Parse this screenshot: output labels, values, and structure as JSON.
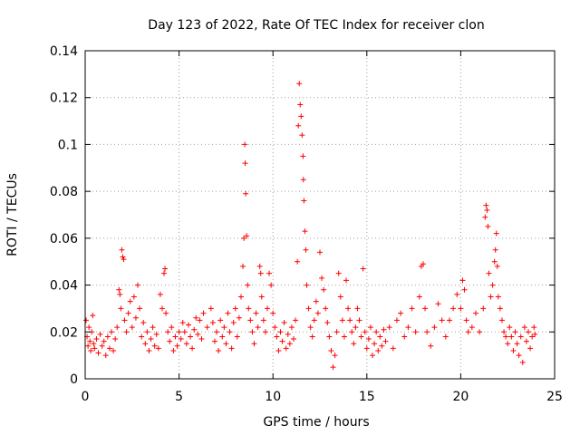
{
  "chart_data": {
    "type": "scatter",
    "title": "Day 123 of 2022, Rate Of TEC Index for receiver clon",
    "xlabel": "GPS time / hours",
    "ylabel": "ROTI / TECUs",
    "xlim": [
      0,
      25
    ],
    "ylim": [
      0,
      0.14
    ],
    "x_ticks": [
      "0",
      "5",
      "10",
      "15",
      "20",
      "25"
    ],
    "y_ticks": [
      "0",
      "0.02",
      "0.04",
      "0.06",
      "0.08",
      "0.1",
      "0.12",
      "0.14"
    ],
    "grid": true,
    "marker": "plus",
    "color": "#ff0000",
    "series": [
      {
        "points": [
          [
            0.05,
            0.025
          ],
          [
            0.1,
            0.018
          ],
          [
            0.15,
            0.014
          ],
          [
            0.2,
            0.022
          ],
          [
            0.25,
            0.016
          ],
          [
            0.3,
            0.012
          ],
          [
            0.35,
            0.02
          ],
          [
            0.4,
            0.027
          ],
          [
            0.45,
            0.015
          ],
          [
            0.5,
            0.013
          ],
          [
            0.6,
            0.017
          ],
          [
            0.7,
            0.011
          ],
          [
            0.8,
            0.019
          ],
          [
            0.9,
            0.014
          ],
          [
            1.0,
            0.016
          ],
          [
            1.1,
            0.01
          ],
          [
            1.2,
            0.018
          ],
          [
            1.3,
            0.013
          ],
          [
            1.4,
            0.02
          ],
          [
            1.5,
            0.012
          ],
          [
            1.6,
            0.017
          ],
          [
            1.7,
            0.022
          ],
          [
            1.8,
            0.038
          ],
          [
            1.85,
            0.036
          ],
          [
            1.9,
            0.03
          ],
          [
            1.95,
            0.055
          ],
          [
            2.0,
            0.052
          ],
          [
            2.05,
            0.051
          ],
          [
            2.1,
            0.025
          ],
          [
            2.2,
            0.02
          ],
          [
            2.3,
            0.028
          ],
          [
            2.4,
            0.033
          ],
          [
            2.5,
            0.022
          ],
          [
            2.6,
            0.035
          ],
          [
            2.7,
            0.026
          ],
          [
            2.8,
            0.04
          ],
          [
            2.9,
            0.03
          ],
          [
            3.0,
            0.018
          ],
          [
            3.1,
            0.024
          ],
          [
            3.2,
            0.015
          ],
          [
            3.3,
            0.02
          ],
          [
            3.4,
            0.012
          ],
          [
            3.5,
            0.017
          ],
          [
            3.6,
            0.022
          ],
          [
            3.7,
            0.014
          ],
          [
            3.8,
            0.019
          ],
          [
            3.9,
            0.013
          ],
          [
            4.0,
            0.036
          ],
          [
            4.1,
            0.03
          ],
          [
            4.2,
            0.045
          ],
          [
            4.25,
            0.047
          ],
          [
            4.3,
            0.028
          ],
          [
            4.4,
            0.02
          ],
          [
            4.5,
            0.016
          ],
          [
            4.6,
            0.022
          ],
          [
            4.7,
            0.012
          ],
          [
            4.8,
            0.018
          ],
          [
            4.9,
            0.014
          ],
          [
            5.0,
            0.02
          ],
          [
            5.1,
            0.017
          ],
          [
            5.2,
            0.024
          ],
          [
            5.3,
            0.02
          ],
          [
            5.4,
            0.015
          ],
          [
            5.5,
            0.023
          ],
          [
            5.6,
            0.018
          ],
          [
            5.7,
            0.013
          ],
          [
            5.8,
            0.021
          ],
          [
            5.9,
            0.026
          ],
          [
            6.0,
            0.019
          ],
          [
            6.1,
            0.025
          ],
          [
            6.2,
            0.017
          ],
          [
            6.3,
            0.028
          ],
          [
            6.5,
            0.022
          ],
          [
            6.7,
            0.03
          ],
          [
            6.8,
            0.024
          ],
          [
            6.9,
            0.016
          ],
          [
            7.0,
            0.02
          ],
          [
            7.1,
            0.012
          ],
          [
            7.2,
            0.025
          ],
          [
            7.3,
            0.018
          ],
          [
            7.4,
            0.022
          ],
          [
            7.5,
            0.015
          ],
          [
            7.6,
            0.028
          ],
          [
            7.7,
            0.02
          ],
          [
            7.8,
            0.013
          ],
          [
            7.9,
            0.024
          ],
          [
            8.0,
            0.03
          ],
          [
            8.1,
            0.018
          ],
          [
            8.2,
            0.026
          ],
          [
            8.3,
            0.035
          ],
          [
            8.4,
            0.048
          ],
          [
            8.45,
            0.06
          ],
          [
            8.5,
            0.1
          ],
          [
            8.52,
            0.092
          ],
          [
            8.55,
            0.079
          ],
          [
            8.6,
            0.061
          ],
          [
            8.65,
            0.04
          ],
          [
            8.7,
            0.03
          ],
          [
            8.8,
            0.025
          ],
          [
            8.9,
            0.02
          ],
          [
            9.0,
            0.015
          ],
          [
            9.1,
            0.028
          ],
          [
            9.2,
            0.022
          ],
          [
            9.3,
            0.048
          ],
          [
            9.35,
            0.045
          ],
          [
            9.4,
            0.035
          ],
          [
            9.5,
            0.025
          ],
          [
            9.6,
            0.02
          ],
          [
            9.7,
            0.03
          ],
          [
            9.8,
            0.045
          ],
          [
            9.9,
            0.04
          ],
          [
            10.0,
            0.028
          ],
          [
            10.1,
            0.022
          ],
          [
            10.2,
            0.018
          ],
          [
            10.3,
            0.012
          ],
          [
            10.4,
            0.02
          ],
          [
            10.5,
            0.016
          ],
          [
            10.6,
            0.024
          ],
          [
            10.7,
            0.013
          ],
          [
            10.8,
            0.019
          ],
          [
            10.9,
            0.015
          ],
          [
            11.0,
            0.022
          ],
          [
            11.1,
            0.017
          ],
          [
            11.2,
            0.025
          ],
          [
            11.3,
            0.05
          ],
          [
            11.35,
            0.108
          ],
          [
            11.4,
            0.126
          ],
          [
            11.45,
            0.117
          ],
          [
            11.5,
            0.112
          ],
          [
            11.55,
            0.104
          ],
          [
            11.6,
            0.095
          ],
          [
            11.62,
            0.085
          ],
          [
            11.65,
            0.076
          ],
          [
            11.7,
            0.063
          ],
          [
            11.75,
            0.055
          ],
          [
            11.8,
            0.04
          ],
          [
            11.9,
            0.03
          ],
          [
            12.0,
            0.022
          ],
          [
            12.1,
            0.018
          ],
          [
            12.2,
            0.025
          ],
          [
            12.3,
            0.033
          ],
          [
            12.4,
            0.028
          ],
          [
            12.5,
            0.054
          ],
          [
            12.6,
            0.043
          ],
          [
            12.7,
            0.038
          ],
          [
            12.8,
            0.03
          ],
          [
            12.9,
            0.024
          ],
          [
            13.0,
            0.018
          ],
          [
            13.1,
            0.012
          ],
          [
            13.2,
            0.005
          ],
          [
            13.3,
            0.01
          ],
          [
            13.4,
            0.02
          ],
          [
            13.5,
            0.045
          ],
          [
            13.6,
            0.035
          ],
          [
            13.7,
            0.025
          ],
          [
            13.8,
            0.018
          ],
          [
            13.9,
            0.042
          ],
          [
            14.0,
            0.03
          ],
          [
            14.1,
            0.025
          ],
          [
            14.2,
            0.02
          ],
          [
            14.3,
            0.015
          ],
          [
            14.4,
            0.022
          ],
          [
            14.5,
            0.03
          ],
          [
            14.6,
            0.025
          ],
          [
            14.7,
            0.018
          ],
          [
            14.8,
            0.047
          ],
          [
            14.9,
            0.02
          ],
          [
            15.0,
            0.013
          ],
          [
            15.1,
            0.017
          ],
          [
            15.2,
            0.022
          ],
          [
            15.3,
            0.01
          ],
          [
            15.4,
            0.015
          ],
          [
            15.5,
            0.02
          ],
          [
            15.6,
            0.012
          ],
          [
            15.7,
            0.018
          ],
          [
            15.8,
            0.014
          ],
          [
            15.9,
            0.021
          ],
          [
            16.0,
            0.016
          ],
          [
            16.2,
            0.022
          ],
          [
            16.4,
            0.013
          ],
          [
            16.6,
            0.025
          ],
          [
            16.8,
            0.028
          ],
          [
            17.0,
            0.018
          ],
          [
            17.2,
            0.022
          ],
          [
            17.4,
            0.03
          ],
          [
            17.6,
            0.02
          ],
          [
            17.8,
            0.035
          ],
          [
            17.9,
            0.048
          ],
          [
            18.0,
            0.049
          ],
          [
            18.1,
            0.03
          ],
          [
            18.2,
            0.02
          ],
          [
            18.4,
            0.014
          ],
          [
            18.6,
            0.022
          ],
          [
            18.8,
            0.032
          ],
          [
            19.0,
            0.025
          ],
          [
            19.2,
            0.018
          ],
          [
            19.4,
            0.025
          ],
          [
            19.6,
            0.03
          ],
          [
            19.8,
            0.036
          ],
          [
            20.0,
            0.03
          ],
          [
            20.1,
            0.042
          ],
          [
            20.2,
            0.038
          ],
          [
            20.3,
            0.025
          ],
          [
            20.4,
            0.02
          ],
          [
            20.6,
            0.022
          ],
          [
            20.8,
            0.028
          ],
          [
            21.0,
            0.02
          ],
          [
            21.2,
            0.03
          ],
          [
            21.3,
            0.069
          ],
          [
            21.35,
            0.074
          ],
          [
            21.4,
            0.072
          ],
          [
            21.45,
            0.065
          ],
          [
            21.5,
            0.045
          ],
          [
            21.6,
            0.035
          ],
          [
            21.7,
            0.04
          ],
          [
            21.8,
            0.05
          ],
          [
            21.85,
            0.055
          ],
          [
            21.9,
            0.062
          ],
          [
            21.95,
            0.048
          ],
          [
            22.0,
            0.035
          ],
          [
            22.1,
            0.03
          ],
          [
            22.2,
            0.025
          ],
          [
            22.3,
            0.02
          ],
          [
            22.4,
            0.018
          ],
          [
            22.5,
            0.015
          ],
          [
            22.6,
            0.022
          ],
          [
            22.7,
            0.018
          ],
          [
            22.8,
            0.012
          ],
          [
            22.9,
            0.02
          ],
          [
            23.0,
            0.015
          ],
          [
            23.1,
            0.01
          ],
          [
            23.2,
            0.018
          ],
          [
            23.3,
            0.007
          ],
          [
            23.4,
            0.022
          ],
          [
            23.5,
            0.016
          ],
          [
            23.6,
            0.02
          ],
          [
            23.7,
            0.013
          ],
          [
            23.8,
            0.018
          ],
          [
            23.9,
            0.022
          ],
          [
            23.95,
            0.019
          ]
        ]
      }
    ]
  }
}
